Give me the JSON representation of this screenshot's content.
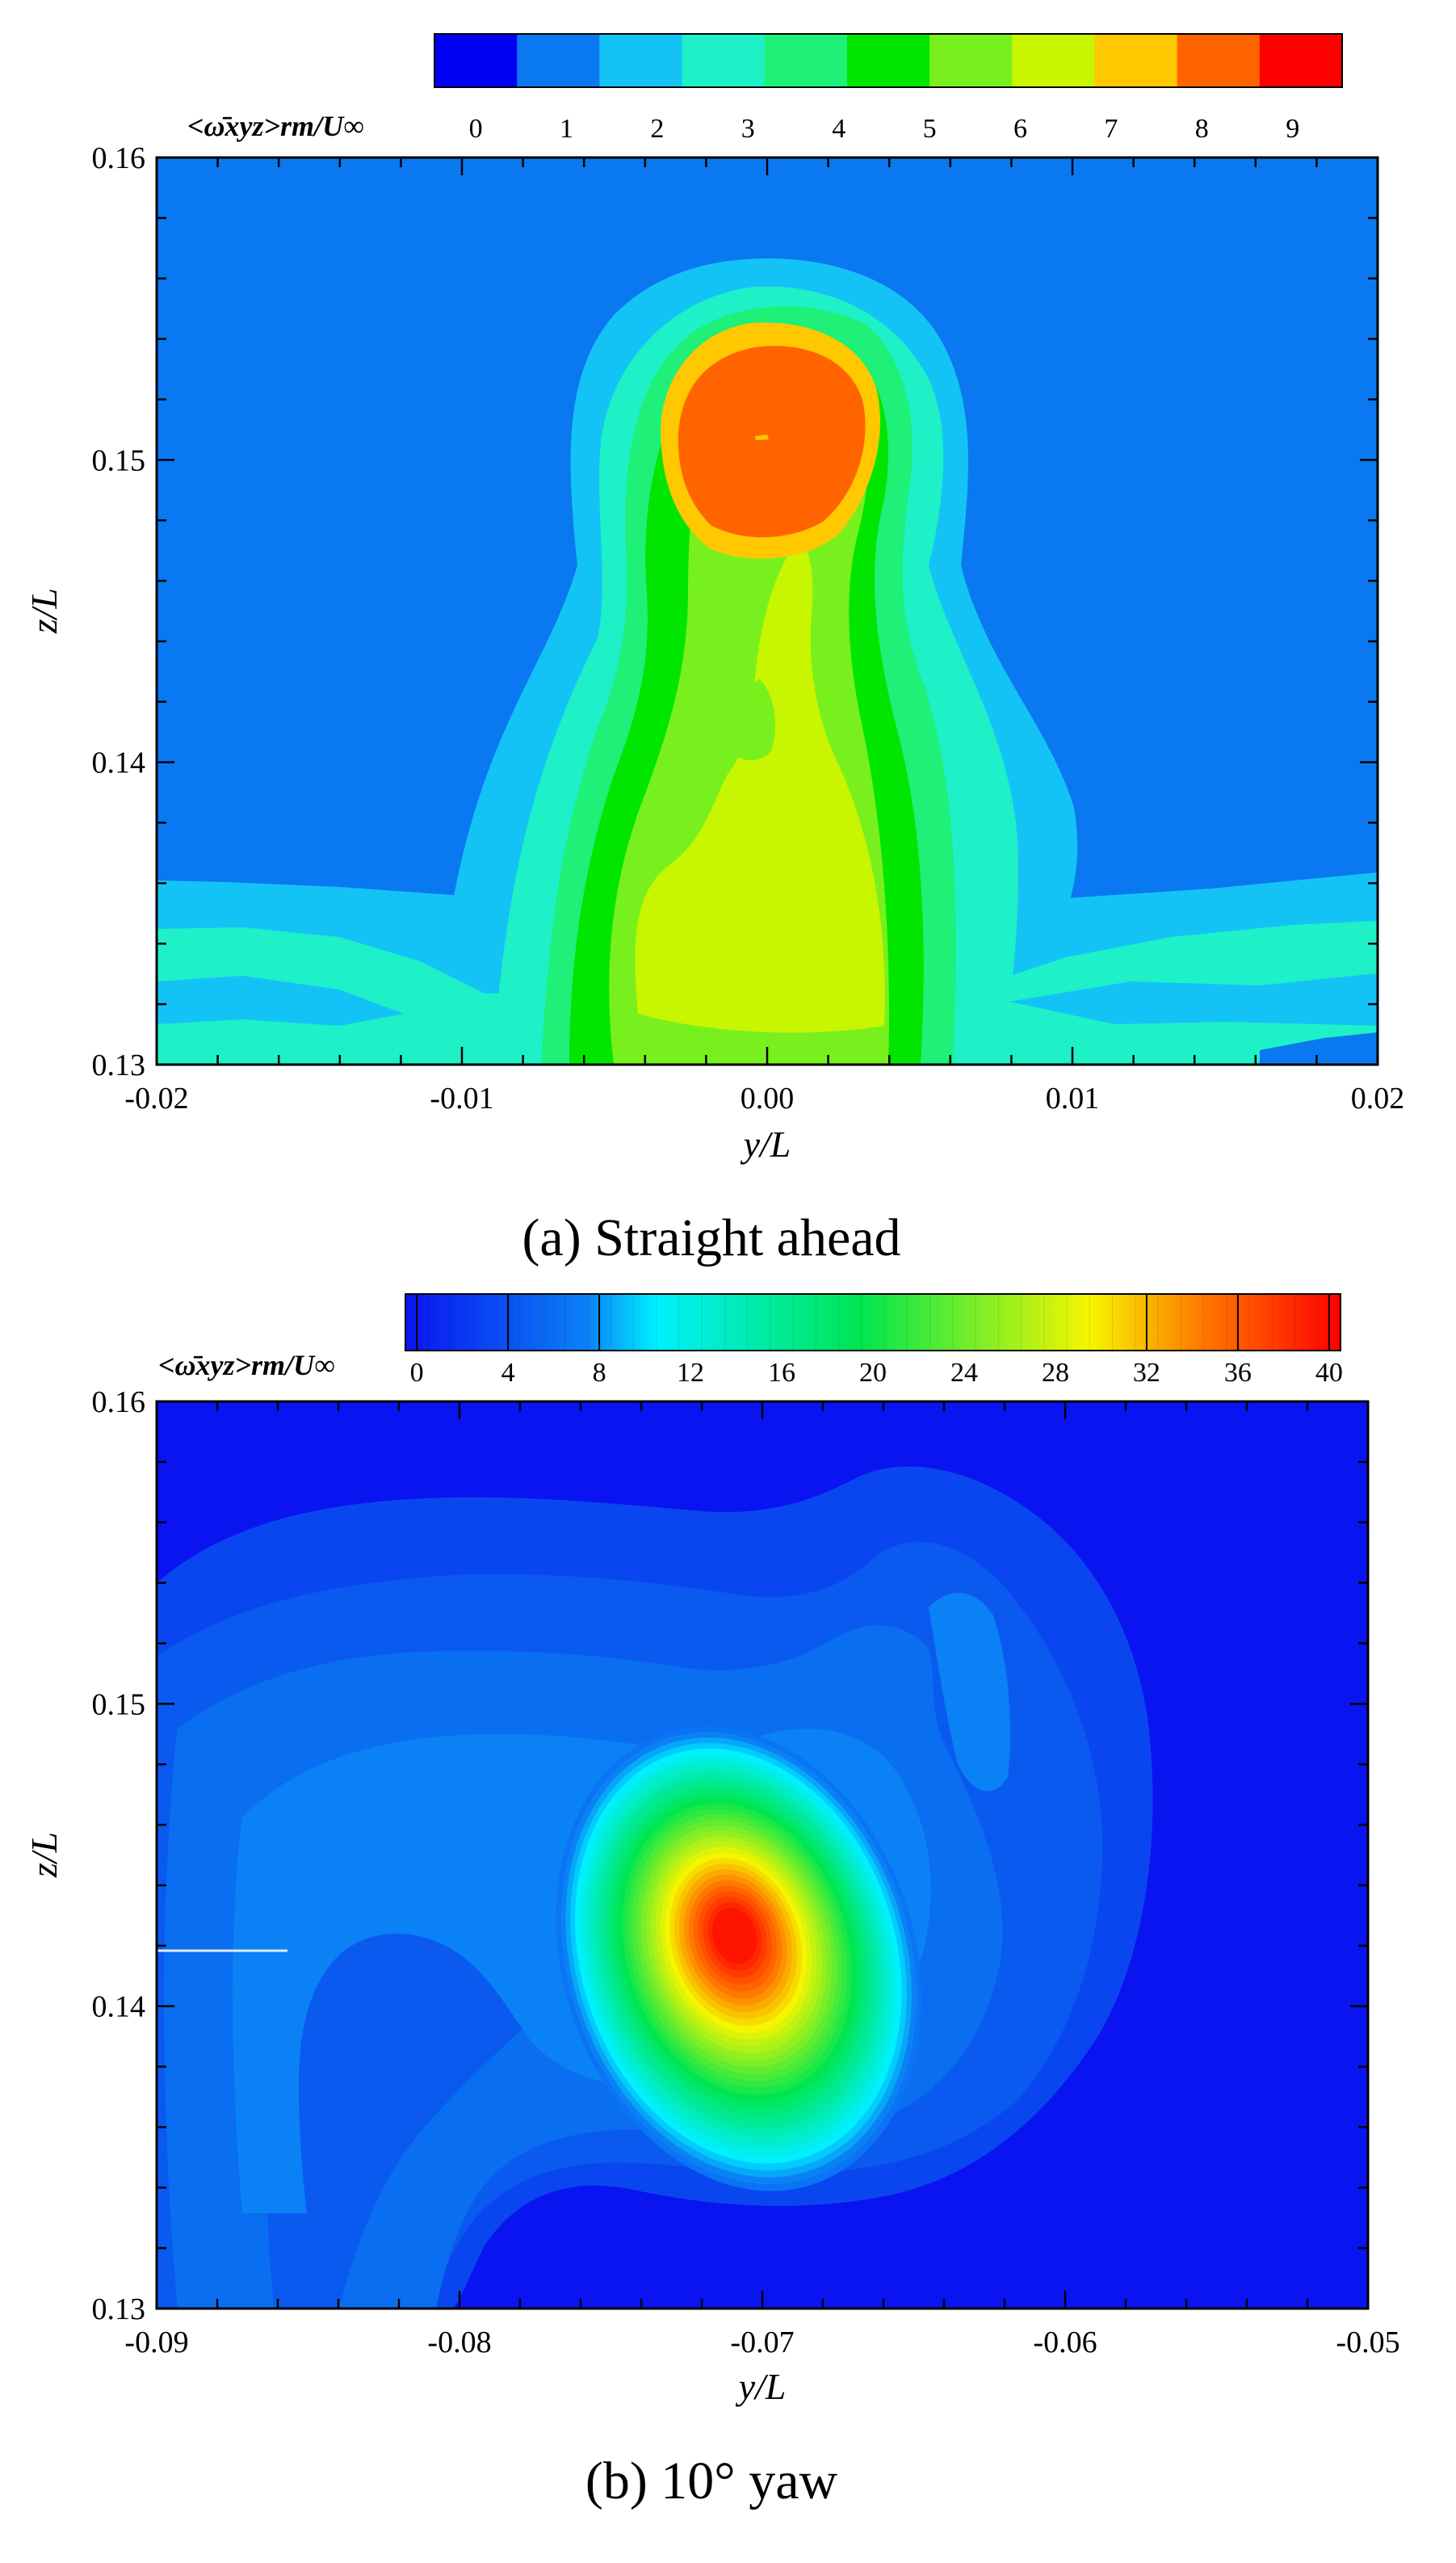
{
  "figure": {
    "colorbar_title": "<ω̄xyz>rm/U∞"
  },
  "chart_data": [
    {
      "type": "heatmap",
      "caption": "(a) Straight ahead",
      "xlabel": "y/L",
      "ylabel": "z/L",
      "xlim": [
        -0.02,
        0.02
      ],
      "ylim": [
        0.13,
        0.16
      ],
      "xticks": [
        "-0.02",
        "-0.01",
        "0.00",
        "0.01",
        "0.02"
      ],
      "yticks": [
        "0.13",
        "0.14",
        "0.15",
        "0.16"
      ],
      "colorbar": {
        "levels": [
          0,
          1,
          2,
          3,
          4,
          5,
          6,
          7,
          8,
          9,
          10
        ],
        "tick_labels": [
          "0",
          "1",
          "2",
          "3",
          "4",
          "5",
          "6",
          "7",
          "8",
          "9"
        ],
        "colors": [
          "#0000f5",
          "#0a78f0",
          "#14c3f5",
          "#1ef0c8",
          "#1ef078",
          "#00e600",
          "#78f01e",
          "#c8f500",
          "#ffc800",
          "#ff6400",
          "#ff0000"
        ]
      },
      "background_level": 1,
      "features": [
        {
          "kind": "vortex-core",
          "y": 0.0,
          "z": 0.151,
          "peak_level": 9
        },
        {
          "kind": "column",
          "y_range": [
            -0.01,
            0.01
          ],
          "z_range": [
            0.13,
            0.153
          ],
          "level_range": [
            2,
            7
          ]
        },
        {
          "kind": "boundary-layer",
          "z_max": 0.135,
          "level_range": [
            1,
            3
          ]
        }
      ]
    },
    {
      "type": "heatmap",
      "caption": "(b) 10° yaw",
      "xlabel": "y/L",
      "ylabel": "z/L",
      "xlim": [
        -0.09,
        -0.05
      ],
      "ylim": [
        0.13,
        0.16
      ],
      "xticks": [
        "-0.09",
        "-0.08",
        "-0.07",
        "-0.06",
        "-0.05"
      ],
      "yticks": [
        "0.13",
        "0.14",
        "0.15",
        "0.16"
      ],
      "colorbar": {
        "range": [
          0,
          41
        ],
        "tick_values": [
          0,
          4,
          8,
          12,
          16,
          20,
          24,
          28,
          32,
          36,
          40
        ],
        "tick_labels": [
          "0",
          "4",
          "8",
          "12",
          "16",
          "20",
          "24",
          "28",
          "32",
          "36",
          "40"
        ],
        "stops": [
          {
            "v": 0,
            "c": "#0a14f0"
          },
          {
            "v": 8,
            "c": "#0a82f5"
          },
          {
            "v": 11,
            "c": "#00f0ff"
          },
          {
            "v": 20,
            "c": "#00e650"
          },
          {
            "v": 30,
            "c": "#f5f500"
          },
          {
            "v": 35,
            "c": "#ff7800"
          },
          {
            "v": 41,
            "c": "#ff0000"
          }
        ]
      },
      "background_level": 1,
      "features": [
        {
          "kind": "vortex-core",
          "y": -0.071,
          "z": 0.1422,
          "peak_level": 40
        },
        {
          "kind": "spiral-sheet",
          "level_range": [
            2,
            7
          ]
        }
      ]
    }
  ]
}
